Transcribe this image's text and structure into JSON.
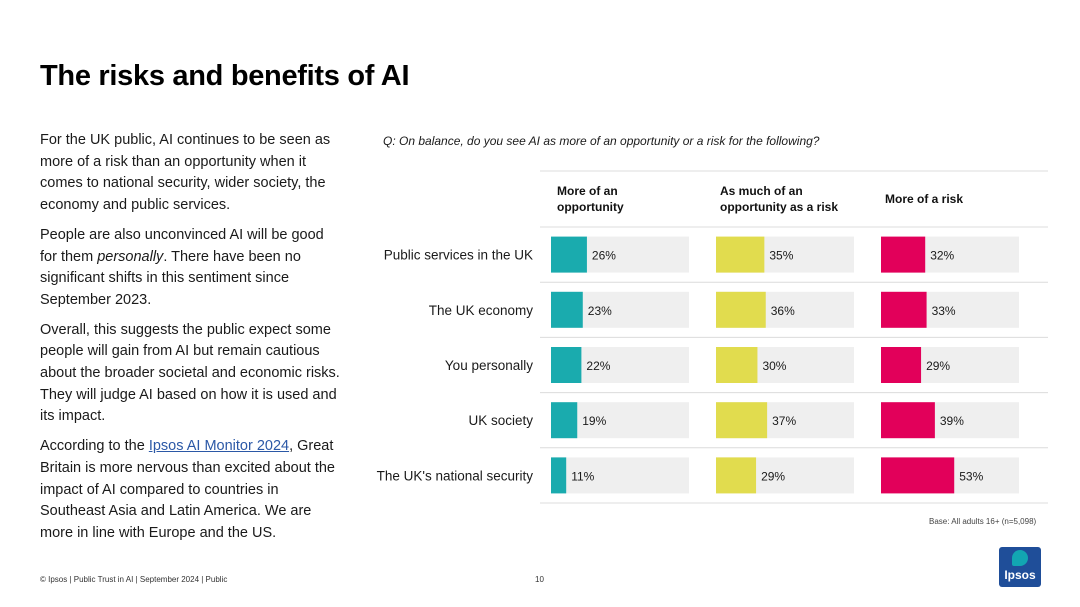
{
  "title": "The risks and benefits of AI",
  "body": {
    "p1": "For the UK public, AI continues to be seen as more of a risk than an opportunity when it comes to national security, wider society, the economy and public services.",
    "p2_pre": "People are also unconvinced AI will be good for them ",
    "p2_em": "personally",
    "p2_post": ". There have been no significant shifts in this sentiment since September 2023.",
    "p3": "Overall, this suggests the public expect some people will gain from AI but remain cautious about the broader societal and economic risks. They will judge AI based on how it is used and its impact.",
    "p4_pre": "According to the ",
    "p4_link": "Ipsos AI Monitor 2024",
    "p4_post": ", Great Britain is more nervous than excited about the impact of AI compared to countries in Southeast Asia and Latin America.  We are more in line with Europe and the US."
  },
  "question": "Q: On balance, do you see AI as more of an opportunity or a risk for the following?",
  "footer": "© Ipsos | Public Trust in AI | September 2024 | Public",
  "page_number": "10",
  "base_note": "Base: All adults 16+ (n=5,098)",
  "logo_text": "Ipsos",
  "chart_data": {
    "type": "bar",
    "categories": [
      "Public services in the UK",
      "The UK economy",
      "You personally",
      "UK society",
      "The UK's national security"
    ],
    "series": [
      {
        "name": "More of an opportunity",
        "values": [
          26,
          23,
          22,
          19,
          11
        ],
        "color": "#1aabae"
      },
      {
        "name": "As much of an opportunity as a risk",
        "values": [
          35,
          36,
          30,
          37,
          29
        ],
        "color": "#e1dc4e"
      },
      {
        "name": "More of a risk",
        "values": [
          32,
          33,
          29,
          39,
          53
        ],
        "color": "#e2005a"
      }
    ],
    "value_suffix": "%",
    "ylim": [
      0,
      100
    ],
    "track_color": "#efefef"
  }
}
